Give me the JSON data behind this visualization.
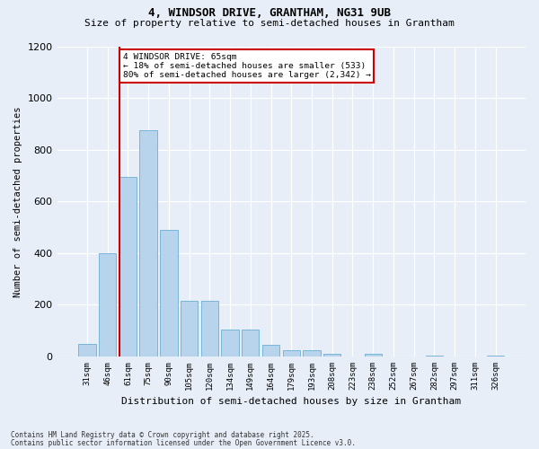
{
  "title1": "4, WINDSOR DRIVE, GRANTHAM, NG31 9UB",
  "title2": "Size of property relative to semi-detached houses in Grantham",
  "xlabel": "Distribution of semi-detached houses by size in Grantham",
  "ylabel": "Number of semi-detached properties",
  "categories": [
    "31sqm",
    "46sqm",
    "61sqm",
    "75sqm",
    "90sqm",
    "105sqm",
    "120sqm",
    "134sqm",
    "149sqm",
    "164sqm",
    "179sqm",
    "193sqm",
    "208sqm",
    "223sqm",
    "238sqm",
    "252sqm",
    "267sqm",
    "282sqm",
    "297sqm",
    "311sqm",
    "326sqm"
  ],
  "values": [
    50,
    400,
    695,
    875,
    490,
    215,
    215,
    105,
    105,
    45,
    25,
    25,
    10,
    0,
    10,
    0,
    0,
    5,
    0,
    0,
    5
  ],
  "bar_color": "#b8d4ec",
  "bar_edge_color": "#6aaed6",
  "annotation_line1": "4 WINDSOR DRIVE: 65sqm",
  "annotation_line2": "← 18% of semi-detached houses are smaller (533)",
  "annotation_line3": "80% of semi-detached houses are larger (2,342) →",
  "vline_color": "#cc0000",
  "vline_x_index": 1.6,
  "ylim": [
    0,
    1200
  ],
  "yticks": [
    0,
    200,
    400,
    600,
    800,
    1000,
    1200
  ],
  "footer1": "Contains HM Land Registry data © Crown copyright and database right 2025.",
  "footer2": "Contains public sector information licensed under the Open Government Licence v3.0.",
  "background_color": "#e8eef8",
  "plot_background": "#e8eef8",
  "title1_fontsize": 9,
  "title2_fontsize": 8
}
